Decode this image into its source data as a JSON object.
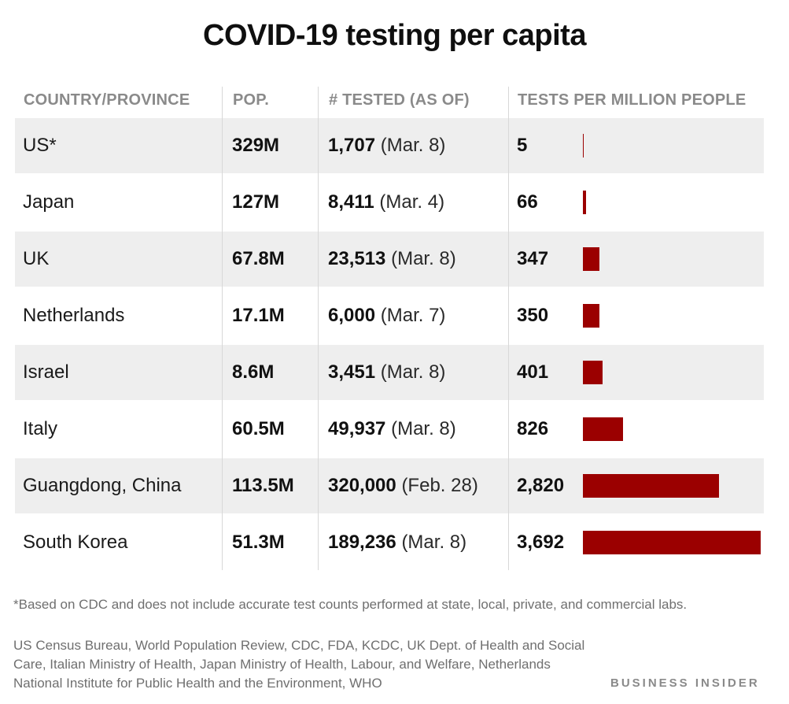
{
  "title": "COVID-19 testing per capita",
  "headers": {
    "country": "COUNTRY/PROVINCE",
    "pop": "POP.",
    "tested": "# TESTED (AS OF)",
    "tpm": "TESTS PER MILLION PEOPLE"
  },
  "chart_data": {
    "type": "table",
    "title": "COVID-19 testing per capita",
    "columns": [
      "COUNTRY/PROVINCE",
      "POP.",
      "# TESTED (AS OF)",
      "TESTS PER MILLION PEOPLE"
    ],
    "rows": [
      {
        "country": "US*",
        "pop": "329M",
        "tested": "1,707",
        "date": "(Mar. 8)",
        "tpm_label": "5",
        "tpm": 5
      },
      {
        "country": "Japan",
        "pop": "127M",
        "tested": "8,411",
        "date": "(Mar. 4)",
        "tpm_label": "66",
        "tpm": 66
      },
      {
        "country": "UK",
        "pop": "67.8M",
        "tested": "23,513",
        "date": "(Mar. 8)",
        "tpm_label": "347",
        "tpm": 347
      },
      {
        "country": "Netherlands",
        "pop": "17.1M",
        "tested": "6,000",
        "date": "(Mar. 7)",
        "tpm_label": "350",
        "tpm": 350
      },
      {
        "country": "Israel",
        "pop": "8.6M",
        "tested": "3,451",
        "date": "(Mar. 8)",
        "tpm_label": "401",
        "tpm": 401
      },
      {
        "country": "Italy",
        "pop": "60.5M",
        "tested": "49,937",
        "date": "(Mar. 8)",
        "tpm_label": "826",
        "tpm": 826
      },
      {
        "country": "Guangdong, China",
        "pop": "113.5M",
        "tested": "320,000",
        "date": "(Feb. 28)",
        "tpm_label": "2,820",
        "tpm": 2820
      },
      {
        "country": "South Korea",
        "pop": "51.3M",
        "tested": "189,236",
        "date": "(Mar. 8)",
        "tpm_label": "3,692",
        "tpm": 3692
      }
    ],
    "bar_color": "#9b0000"
  },
  "footnote": "*Based on CDC and does not include accurate test counts performed at state, local, private, and commercial labs.",
  "sources": "US Census Bureau, World Population Review, CDC, FDA, KCDC, UK Dept. of Health and Social Care, Italian Ministry of Health, Japan Ministry of Health, Labour, and Welfare, Netherlands National Institute for Public Health and the Environment, WHO",
  "brand": "BUSINESS INSIDER"
}
